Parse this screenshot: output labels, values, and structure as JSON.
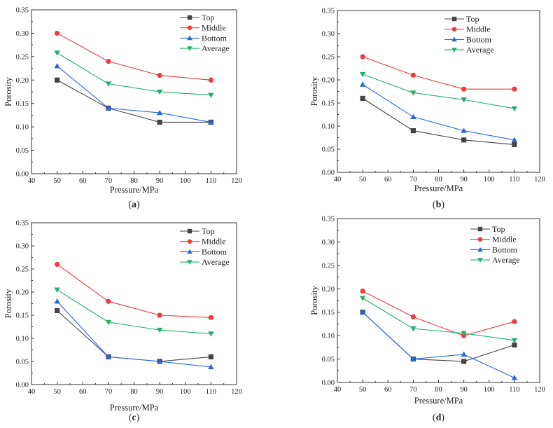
{
  "colors": {
    "Top": "#444444",
    "Middle": "#f03a3a",
    "Bottom": "#2866e0",
    "Average": "#22b06a"
  },
  "chart_data": [
    {
      "type": "line",
      "panel_label": "a",
      "xlabel": "Pressure/MPa",
      "ylabel": "Porosity",
      "xlim": [
        40,
        120
      ],
      "ylim": [
        0,
        0.35
      ],
      "xticks": [
        "40",
        "50",
        "60",
        "70",
        "80",
        "90",
        "100",
        "110",
        "120"
      ],
      "yticks": [
        "0.00",
        "0.05",
        "0.10",
        "0.15",
        "0.20",
        "0.25",
        "0.30",
        "0.35"
      ],
      "x": [
        50,
        70,
        90,
        110
      ],
      "legend": "top-right",
      "series": [
        {
          "name": "Top",
          "marker": "square",
          "values": [
            0.2,
            0.14,
            0.11,
            0.11
          ]
        },
        {
          "name": "Middle",
          "marker": "circle",
          "values": [
            0.3,
            0.24,
            0.21,
            0.2
          ]
        },
        {
          "name": "Bottom",
          "marker": "triangle-up",
          "values": [
            0.23,
            0.14,
            0.13,
            0.11
          ]
        },
        {
          "name": "Average",
          "marker": "triangle-down",
          "values": [
            0.258,
            0.192,
            0.175,
            0.168
          ]
        }
      ]
    },
    {
      "type": "line",
      "panel_label": "b",
      "xlabel": "Pressure/MPa",
      "ylabel": "Porosity",
      "xlim": [
        40,
        120
      ],
      "ylim": [
        0,
        0.35
      ],
      "xticks": [
        "40",
        "50",
        "60",
        "70",
        "80",
        "90",
        "100",
        "110",
        "120"
      ],
      "yticks": [
        "0.00",
        "0.05",
        "0.10",
        "0.15",
        "0.20",
        "0.25",
        "0.30",
        "0.35"
      ],
      "x": [
        50,
        70,
        90,
        110
      ],
      "legend": "top-right",
      "series": [
        {
          "name": "Top",
          "marker": "square",
          "values": [
            0.16,
            0.09,
            0.07,
            0.06
          ]
        },
        {
          "name": "Middle",
          "marker": "circle",
          "values": [
            0.25,
            0.21,
            0.18,
            0.18
          ]
        },
        {
          "name": "Bottom",
          "marker": "triangle-up",
          "values": [
            0.19,
            0.12,
            0.09,
            0.07
          ]
        },
        {
          "name": "Average",
          "marker": "triangle-down",
          "values": [
            0.212,
            0.172,
            0.157,
            0.138
          ]
        }
      ]
    },
    {
      "type": "line",
      "panel_label": "c",
      "xlabel": "Pressure/MPa",
      "ylabel": "Porosity",
      "xlim": [
        40,
        120
      ],
      "ylim": [
        0,
        0.35
      ],
      "xticks": [
        "40",
        "50",
        "60",
        "70",
        "80",
        "90",
        "100",
        "110",
        "120"
      ],
      "yticks": [
        "0.00",
        "0.05",
        "0.10",
        "0.15",
        "0.20",
        "0.25",
        "0.30",
        "0.35"
      ],
      "x": [
        50,
        70,
        90,
        110
      ],
      "legend": "top-right",
      "series": [
        {
          "name": "Top",
          "marker": "square",
          "values": [
            0.16,
            0.06,
            0.05,
            0.06
          ]
        },
        {
          "name": "Middle",
          "marker": "circle",
          "values": [
            0.26,
            0.18,
            0.15,
            0.145
          ]
        },
        {
          "name": "Bottom",
          "marker": "triangle-up",
          "values": [
            0.18,
            0.06,
            0.05,
            0.038
          ]
        },
        {
          "name": "Average",
          "marker": "triangle-down",
          "values": [
            0.205,
            0.135,
            0.118,
            0.11
          ]
        }
      ]
    },
    {
      "type": "line",
      "panel_label": "d",
      "xlabel": "Pressure/MPa",
      "ylabel": "Porosity",
      "xlim": [
        40,
        120
      ],
      "ylim": [
        0,
        0.35
      ],
      "xticks": [
        "40",
        "50",
        "60",
        "70",
        "80",
        "90",
        "100",
        "110",
        "120"
      ],
      "yticks": [
        "0.00",
        "0.05",
        "0.10",
        "0.15",
        "0.20",
        "0.25",
        "0.30",
        "0.35"
      ],
      "x": [
        50,
        70,
        90,
        110
      ],
      "legend": "top-right",
      "series": [
        {
          "name": "Top",
          "marker": "square",
          "values": [
            0.15,
            0.05,
            0.045,
            0.08
          ]
        },
        {
          "name": "Middle",
          "marker": "circle",
          "values": [
            0.195,
            0.14,
            0.1,
            0.13
          ]
        },
        {
          "name": "Bottom",
          "marker": "triangle-up",
          "values": [
            0.15,
            0.05,
            0.06,
            0.01
          ]
        },
        {
          "name": "Average",
          "marker": "triangle-down",
          "values": [
            0.18,
            0.115,
            0.105,
            0.09
          ]
        }
      ]
    }
  ]
}
